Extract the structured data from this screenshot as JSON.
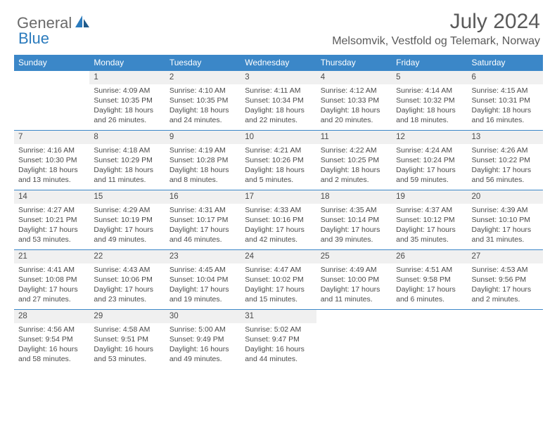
{
  "logo": {
    "text1": "General",
    "text2": "Blue"
  },
  "title": "July 2024",
  "location": "Melsomvik, Vestfold og Telemark, Norway",
  "colors": {
    "header_blue": "#3b87c8",
    "gray_bg": "#f0f0f0",
    "text": "#4a4a4a",
    "logo_gray": "#6a6a6a",
    "logo_blue": "#2b7bbd"
  },
  "daysOfWeek": [
    "Sunday",
    "Monday",
    "Tuesday",
    "Wednesday",
    "Thursday",
    "Friday",
    "Saturday"
  ],
  "weeks": [
    {
      "nums": [
        "",
        "1",
        "2",
        "3",
        "4",
        "5",
        "6"
      ],
      "cells": [
        "",
        "Sunrise: 4:09 AM\nSunset: 10:35 PM\nDaylight: 18 hours and 26 minutes.",
        "Sunrise: 4:10 AM\nSunset: 10:35 PM\nDaylight: 18 hours and 24 minutes.",
        "Sunrise: 4:11 AM\nSunset: 10:34 PM\nDaylight: 18 hours and 22 minutes.",
        "Sunrise: 4:12 AM\nSunset: 10:33 PM\nDaylight: 18 hours and 20 minutes.",
        "Sunrise: 4:14 AM\nSunset: 10:32 PM\nDaylight: 18 hours and 18 minutes.",
        "Sunrise: 4:15 AM\nSunset: 10:31 PM\nDaylight: 18 hours and 16 minutes."
      ]
    },
    {
      "nums": [
        "7",
        "8",
        "9",
        "10",
        "11",
        "12",
        "13"
      ],
      "cells": [
        "Sunrise: 4:16 AM\nSunset: 10:30 PM\nDaylight: 18 hours and 13 minutes.",
        "Sunrise: 4:18 AM\nSunset: 10:29 PM\nDaylight: 18 hours and 11 minutes.",
        "Sunrise: 4:19 AM\nSunset: 10:28 PM\nDaylight: 18 hours and 8 minutes.",
        "Sunrise: 4:21 AM\nSunset: 10:26 PM\nDaylight: 18 hours and 5 minutes.",
        "Sunrise: 4:22 AM\nSunset: 10:25 PM\nDaylight: 18 hours and 2 minutes.",
        "Sunrise: 4:24 AM\nSunset: 10:24 PM\nDaylight: 17 hours and 59 minutes.",
        "Sunrise: 4:26 AM\nSunset: 10:22 PM\nDaylight: 17 hours and 56 minutes."
      ]
    },
    {
      "nums": [
        "14",
        "15",
        "16",
        "17",
        "18",
        "19",
        "20"
      ],
      "cells": [
        "Sunrise: 4:27 AM\nSunset: 10:21 PM\nDaylight: 17 hours and 53 minutes.",
        "Sunrise: 4:29 AM\nSunset: 10:19 PM\nDaylight: 17 hours and 49 minutes.",
        "Sunrise: 4:31 AM\nSunset: 10:17 PM\nDaylight: 17 hours and 46 minutes.",
        "Sunrise: 4:33 AM\nSunset: 10:16 PM\nDaylight: 17 hours and 42 minutes.",
        "Sunrise: 4:35 AM\nSunset: 10:14 PM\nDaylight: 17 hours and 39 minutes.",
        "Sunrise: 4:37 AM\nSunset: 10:12 PM\nDaylight: 17 hours and 35 minutes.",
        "Sunrise: 4:39 AM\nSunset: 10:10 PM\nDaylight: 17 hours and 31 minutes."
      ]
    },
    {
      "nums": [
        "21",
        "22",
        "23",
        "24",
        "25",
        "26",
        "27"
      ],
      "cells": [
        "Sunrise: 4:41 AM\nSunset: 10:08 PM\nDaylight: 17 hours and 27 minutes.",
        "Sunrise: 4:43 AM\nSunset: 10:06 PM\nDaylight: 17 hours and 23 minutes.",
        "Sunrise: 4:45 AM\nSunset: 10:04 PM\nDaylight: 17 hours and 19 minutes.",
        "Sunrise: 4:47 AM\nSunset: 10:02 PM\nDaylight: 17 hours and 15 minutes.",
        "Sunrise: 4:49 AM\nSunset: 10:00 PM\nDaylight: 17 hours and 11 minutes.",
        "Sunrise: 4:51 AM\nSunset: 9:58 PM\nDaylight: 17 hours and 6 minutes.",
        "Sunrise: 4:53 AM\nSunset: 9:56 PM\nDaylight: 17 hours and 2 minutes."
      ]
    },
    {
      "nums": [
        "28",
        "29",
        "30",
        "31",
        "",
        "",
        ""
      ],
      "cells": [
        "Sunrise: 4:56 AM\nSunset: 9:54 PM\nDaylight: 16 hours and 58 minutes.",
        "Sunrise: 4:58 AM\nSunset: 9:51 PM\nDaylight: 16 hours and 53 minutes.",
        "Sunrise: 5:00 AM\nSunset: 9:49 PM\nDaylight: 16 hours and 49 minutes.",
        "Sunrise: 5:02 AM\nSunset: 9:47 PM\nDaylight: 16 hours and 44 minutes.",
        "",
        "",
        ""
      ]
    }
  ]
}
